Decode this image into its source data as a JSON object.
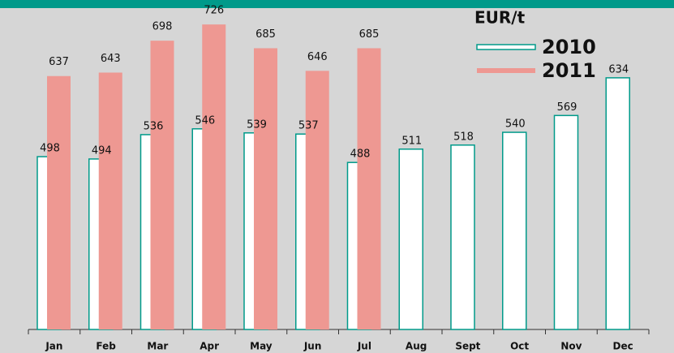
{
  "chart_data": {
    "type": "bar",
    "legend_title": "EUR/t",
    "categories": [
      "Jan",
      "Feb",
      "Mar",
      "Apr",
      "May",
      "Jun",
      "Jul",
      "Aug",
      "Sept",
      "Oct",
      "Nov",
      "Dec"
    ],
    "series": [
      {
        "name": "2010",
        "color": "#ffffff",
        "edge_color": "#009a8a",
        "values": [
          498,
          494,
          536,
          546,
          539,
          537,
          488,
          511,
          518,
          540,
          569,
          634
        ]
      },
      {
        "name": "2011",
        "color": "#ee9892",
        "values": [
          637,
          643,
          698,
          726,
          685,
          646,
          685,
          null,
          null,
          null,
          null,
          null
        ]
      }
    ],
    "ylim": [
      200,
      750
    ],
    "legend": "upper right"
  }
}
